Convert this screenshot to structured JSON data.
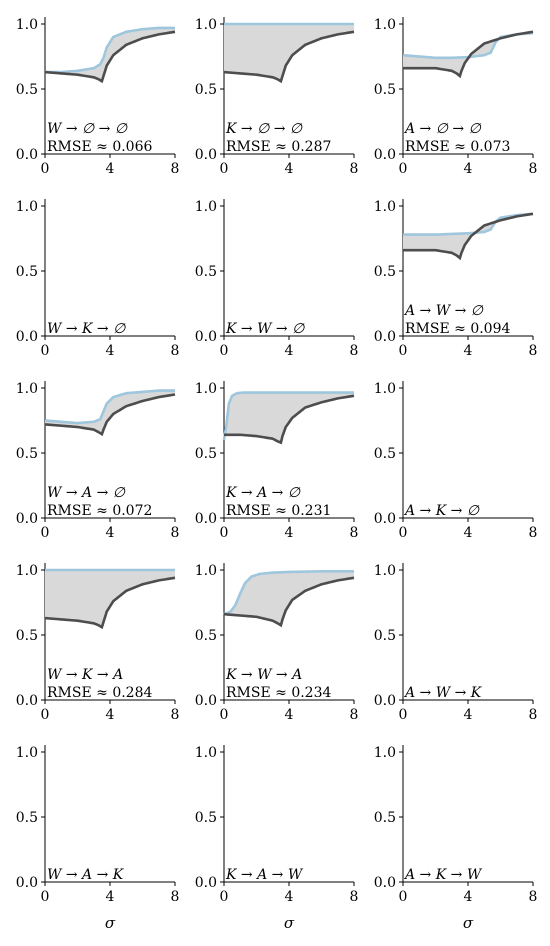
{
  "figure": {
    "xlabel": "σ"
  },
  "colors": {
    "reference": "#4d4d4d",
    "model": "#9ec6dc",
    "fill": "#d9d9d9"
  },
  "chart_data": [
    {
      "type": "line",
      "label": "W → ∅ → ∅",
      "rmse": "RMSE ≈ 0.066",
      "xlim": [
        0,
        8
      ],
      "ylim": [
        0,
        1
      ],
      "xticks": [
        "0",
        "4",
        "8"
      ],
      "yticks": [
        "0.0",
        "0.5",
        "1.0"
      ],
      "model": "m1"
    },
    {
      "type": "line",
      "label": "K → ∅ → ∅",
      "rmse": "RMSE ≈ 0.287",
      "xlim": [
        0,
        8
      ],
      "ylim": [
        0,
        1
      ],
      "xticks": [
        "0",
        "4",
        "8"
      ],
      "yticks": [
        "0.0",
        "0.5",
        "1.0"
      ],
      "model": "flat1"
    },
    {
      "type": "line",
      "label": "A → ∅ → ∅",
      "rmse": "RMSE ≈ 0.073",
      "xlim": [
        0,
        8
      ],
      "ylim": [
        0,
        1
      ],
      "xticks": [
        "0",
        "4",
        "8"
      ],
      "yticks": [
        "0.0",
        "0.5",
        "1.0"
      ],
      "model": "m3",
      "ref": "r3"
    },
    {
      "type": "line",
      "label": "W → K → ∅",
      "rmse": "",
      "xlim": [
        0,
        8
      ],
      "ylim": [
        0,
        1
      ],
      "xticks": [
        "0",
        "4",
        "8"
      ],
      "yticks": [
        "0.0",
        "0.5",
        "1.0"
      ],
      "model": null
    },
    {
      "type": "line",
      "label": "K → W → ∅",
      "rmse": "",
      "xlim": [
        0,
        8
      ],
      "ylim": [
        0,
        1
      ],
      "xticks": [
        "0",
        "4",
        "8"
      ],
      "yticks": [
        "0.0",
        "0.5",
        "1.0"
      ],
      "model": null
    },
    {
      "type": "line",
      "label": "A → W → ∅",
      "rmse": "RMSE ≈ 0.094",
      "xlim": [
        0,
        8
      ],
      "ylim": [
        0,
        1
      ],
      "xticks": [
        "0",
        "4",
        "8"
      ],
      "yticks": [
        "0.0",
        "0.5",
        "1.0"
      ],
      "model": "m6",
      "ref": "r3"
    },
    {
      "type": "line",
      "label": "W → A → ∅",
      "rmse": "RMSE ≈ 0.072",
      "xlim": [
        0,
        8
      ],
      "ylim": [
        0,
        1
      ],
      "xticks": [
        "0",
        "4",
        "8"
      ],
      "yticks": [
        "0.0",
        "0.5",
        "1.0"
      ],
      "model": "m7",
      "ref": "r7"
    },
    {
      "type": "line",
      "label": "K → A → ∅",
      "rmse": "RMSE ≈ 0.231",
      "xlim": [
        0,
        8
      ],
      "ylim": [
        0,
        1
      ],
      "xticks": [
        "0",
        "4",
        "8"
      ],
      "yticks": [
        "0.0",
        "0.5",
        "1.0"
      ],
      "model": "m8",
      "ref": "r8"
    },
    {
      "type": "line",
      "label": "A → K → ∅",
      "rmse": "",
      "xlim": [
        0,
        8
      ],
      "ylim": [
        0,
        1
      ],
      "xticks": [
        "0",
        "4",
        "8"
      ],
      "yticks": [
        "0.0",
        "0.5",
        "1.0"
      ],
      "model": null
    },
    {
      "type": "line",
      "label": "W → K → A",
      "rmse": "RMSE ≈ 0.284",
      "xlim": [
        0,
        8
      ],
      "ylim": [
        0,
        1
      ],
      "xticks": [
        "0",
        "4",
        "8"
      ],
      "yticks": [
        "0.0",
        "0.5",
        "1.0"
      ],
      "model": "flat1"
    },
    {
      "type": "line",
      "label": "K → W → A",
      "rmse": "RMSE ≈ 0.234",
      "xlim": [
        0,
        8
      ],
      "ylim": [
        0,
        1
      ],
      "xticks": [
        "0",
        "4",
        "8"
      ],
      "yticks": [
        "0.0",
        "0.5",
        "1.0"
      ],
      "model": "m11",
      "ref": "r11"
    },
    {
      "type": "line",
      "label": "A → W → K",
      "rmse": "",
      "xlim": [
        0,
        8
      ],
      "ylim": [
        0,
        1
      ],
      "xticks": [
        "0",
        "4",
        "8"
      ],
      "yticks": [
        "0.0",
        "0.5",
        "1.0"
      ],
      "model": null
    },
    {
      "type": "line",
      "label": "W → A → K",
      "rmse": "",
      "xlim": [
        0,
        8
      ],
      "ylim": [
        0,
        1
      ],
      "xticks": [
        "0",
        "4",
        "8"
      ],
      "yticks": [
        "0.0",
        "0.5",
        "1.0"
      ],
      "model": null
    },
    {
      "type": "line",
      "label": "K → A → W",
      "rmse": "",
      "xlim": [
        0,
        8
      ],
      "ylim": [
        0,
        1
      ],
      "xticks": [
        "0",
        "4",
        "8"
      ],
      "yticks": [
        "0.0",
        "0.5",
        "1.0"
      ],
      "model": null
    },
    {
      "type": "line",
      "label": "A → K → W",
      "rmse": "",
      "xlim": [
        0,
        8
      ],
      "ylim": [
        0,
        1
      ],
      "xticks": [
        "0",
        "4",
        "8"
      ],
      "yticks": [
        "0.0",
        "0.5",
        "1.0"
      ],
      "model": null
    }
  ],
  "curves": {
    "ref_default": {
      "x": [
        0,
        1,
        2,
        2.5,
        3,
        3.3,
        3.5,
        3.6,
        3.8,
        4.2,
        5,
        6,
        7,
        8
      ],
      "y": [
        0.63,
        0.62,
        0.61,
        0.6,
        0.59,
        0.575,
        0.56,
        0.6,
        0.68,
        0.76,
        0.84,
        0.89,
        0.92,
        0.94
      ]
    },
    "r3": {
      "x": [
        0,
        1,
        2,
        3,
        3.3,
        3.5,
        3.6,
        3.8,
        4.2,
        5,
        6,
        7,
        8
      ],
      "y": [
        0.66,
        0.66,
        0.66,
        0.64,
        0.62,
        0.6,
        0.64,
        0.7,
        0.77,
        0.85,
        0.89,
        0.92,
        0.94
      ]
    },
    "r7": {
      "x": [
        0,
        1,
        2,
        3,
        3.3,
        3.5,
        3.6,
        3.8,
        4.2,
        5,
        6,
        7,
        8
      ],
      "y": [
        0.72,
        0.71,
        0.7,
        0.68,
        0.66,
        0.645,
        0.68,
        0.74,
        0.8,
        0.86,
        0.9,
        0.93,
        0.95
      ]
    },
    "r8": {
      "x": [
        0,
        1,
        2,
        3,
        3.3,
        3.5,
        3.6,
        3.8,
        4.2,
        5,
        6,
        7,
        8
      ],
      "y": [
        0.64,
        0.64,
        0.63,
        0.61,
        0.59,
        0.58,
        0.63,
        0.7,
        0.77,
        0.85,
        0.89,
        0.92,
        0.94
      ]
    },
    "r11": {
      "x": [
        0,
        1,
        2,
        3,
        3.3,
        3.5,
        3.6,
        3.8,
        4.2,
        5,
        6,
        7,
        8
      ],
      "y": [
        0.66,
        0.65,
        0.64,
        0.61,
        0.59,
        0.575,
        0.62,
        0.69,
        0.77,
        0.84,
        0.89,
        0.92,
        0.94
      ]
    },
    "m1": {
      "x": [
        0,
        1,
        2,
        3,
        3.4,
        3.6,
        3.8,
        4.2,
        5,
        6,
        7,
        8
      ],
      "y": [
        0.63,
        0.63,
        0.64,
        0.66,
        0.69,
        0.74,
        0.82,
        0.9,
        0.94,
        0.96,
        0.97,
        0.97
      ]
    },
    "flat1": {
      "x": [
        0,
        8
      ],
      "y": [
        1.0,
        1.0
      ]
    },
    "m3": {
      "x": [
        0,
        1,
        2,
        3,
        4,
        5,
        5.4,
        5.7,
        6,
        7,
        8
      ],
      "y": [
        0.76,
        0.75,
        0.74,
        0.74,
        0.745,
        0.76,
        0.78,
        0.86,
        0.9,
        0.92,
        0.93
      ]
    },
    "m6": {
      "x": [
        0,
        1,
        2,
        3,
        4,
        5,
        5.4,
        5.7,
        6,
        7,
        8
      ],
      "y": [
        0.78,
        0.78,
        0.78,
        0.785,
        0.79,
        0.8,
        0.82,
        0.88,
        0.91,
        0.93,
        0.94
      ]
    },
    "m7": {
      "x": [
        0,
        1,
        2,
        3,
        3.4,
        3.6,
        3.8,
        4.2,
        5,
        6,
        7,
        8
      ],
      "y": [
        0.75,
        0.74,
        0.73,
        0.74,
        0.76,
        0.82,
        0.88,
        0.93,
        0.96,
        0.97,
        0.98,
        0.98
      ]
    },
    "m8": {
      "x": [
        0,
        0.15,
        0.3,
        0.5,
        0.8,
        1.2,
        2,
        4,
        8
      ],
      "y": [
        0.6,
        0.72,
        0.88,
        0.94,
        0.96,
        0.965,
        0.965,
        0.965,
        0.965
      ]
    },
    "m11": {
      "x": [
        0,
        0.4,
        0.7,
        1,
        1.3,
        1.7,
        2.2,
        3,
        4,
        6,
        8
      ],
      "y": [
        0.66,
        0.68,
        0.73,
        0.82,
        0.9,
        0.95,
        0.97,
        0.98,
        0.985,
        0.99,
        0.99
      ]
    }
  }
}
